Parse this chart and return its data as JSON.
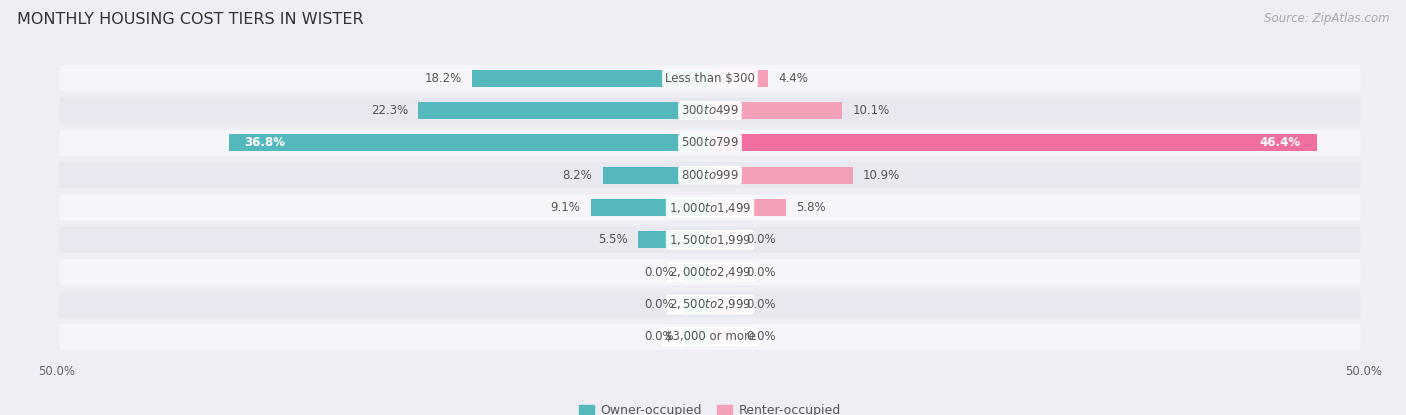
{
  "title": "MONTHLY HOUSING COST TIERS IN WISTER",
  "source": "Source: ZipAtlas.com",
  "categories": [
    "Less than $300",
    "$300 to $499",
    "$500 to $799",
    "$800 to $999",
    "$1,000 to $1,499",
    "$1,500 to $1,999",
    "$2,000 to $2,499",
    "$2,500 to $2,999",
    "$3,000 or more"
  ],
  "owner_values": [
    18.2,
    22.3,
    36.8,
    8.2,
    9.1,
    5.5,
    0.0,
    0.0,
    0.0
  ],
  "renter_values": [
    4.4,
    10.1,
    46.4,
    10.9,
    5.8,
    0.0,
    0.0,
    0.0,
    0.0
  ],
  "owner_color": "#55b8bc",
  "renter_color": "#f4a0b8",
  "renter_color_strong": "#f06fa0",
  "axis_max": 50.0,
  "bg_color": "#eeeef4",
  "row_bg_even": "#f5f5fa",
  "row_bg_odd": "#e8e8f0",
  "title_fontsize": 11.5,
  "source_fontsize": 8.5,
  "value_fontsize": 8.5,
  "category_fontsize": 8.5,
  "legend_fontsize": 9,
  "axis_label_fontsize": 8.5
}
